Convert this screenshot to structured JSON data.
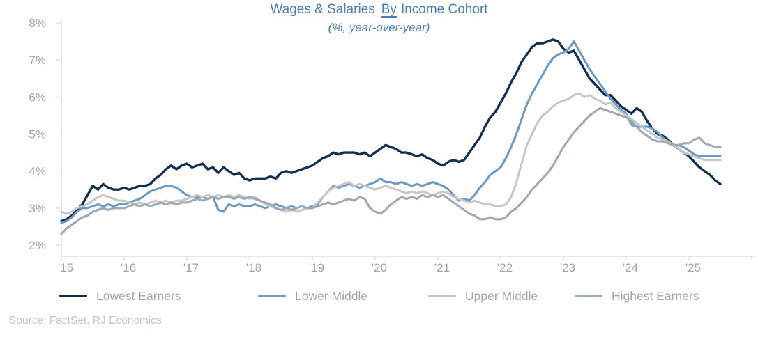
{
  "title": {
    "part1": "Wages & Salaries",
    "underlined_word": "By",
    "part2": "Income Cohort",
    "full": "Wages & Salaries By Income Cohort"
  },
  "subtitle": "(%, year-over-year)",
  "source": "Source: FactSet, RJ Economics",
  "colors": {
    "title_text": "#4a7db9",
    "axis_label": "#a3a3a3",
    "axis_line": "#d9d9d9",
    "legend_label": "#a6a6a6",
    "source_text": "#c6c6c6"
  },
  "chart_data": {
    "type": "line",
    "title": "Wages & Salaries By Income Cohort",
    "subtitle": "(%, year-over-year)",
    "unit": "%, year-over-year",
    "grid": false,
    "legend_position": "bottom",
    "x_axis": {
      "start_year": 2015,
      "months_per_point": 1,
      "end_label_year": 2025,
      "ticks": [
        {
          "t": 2015,
          "label": "'15"
        },
        {
          "t": 2016,
          "label": "'16"
        },
        {
          "t": 2017,
          "label": "'17"
        },
        {
          "t": 2018,
          "label": "'18"
        },
        {
          "t": 2019,
          "label": "'19"
        },
        {
          "t": 2020,
          "label": "'20"
        },
        {
          "t": 2021,
          "label": "'21"
        },
        {
          "t": 2022,
          "label": "'22"
        },
        {
          "t": 2023,
          "label": "'23"
        },
        {
          "t": 2024,
          "label": "'24"
        },
        {
          "t": 2025,
          "label": "'25"
        },
        {
          "t": 2026,
          "label": ""
        }
      ]
    },
    "y_axis": {
      "range": [
        2,
        8
      ],
      "ticks": [
        {
          "v": 2,
          "label": "2%"
        },
        {
          "v": 3,
          "label": "3%"
        },
        {
          "v": 4,
          "label": "4%"
        },
        {
          "v": 5,
          "label": "5%"
        },
        {
          "v": 6,
          "label": "6%"
        },
        {
          "v": 7,
          "label": "7%"
        },
        {
          "v": 8,
          "label": "8%"
        }
      ]
    },
    "series": [
      {
        "name": "Lowest Earners",
        "color": "#12304f",
        "line_width": 3.4,
        "values": [
          2.65,
          2.7,
          2.8,
          2.95,
          3.1,
          3.35,
          3.6,
          3.5,
          3.65,
          3.55,
          3.5,
          3.5,
          3.55,
          3.5,
          3.55,
          3.6,
          3.6,
          3.65,
          3.8,
          3.9,
          4.05,
          4.15,
          4.05,
          4.15,
          4.2,
          4.1,
          4.15,
          4.2,
          4.05,
          4.1,
          3.95,
          4.1,
          4.0,
          3.9,
          3.95,
          3.8,
          3.75,
          3.8,
          3.8,
          3.8,
          3.85,
          3.8,
          3.95,
          4.0,
          3.95,
          4.0,
          4.05,
          4.1,
          4.15,
          4.25,
          4.35,
          4.4,
          4.5,
          4.45,
          4.5,
          4.5,
          4.5,
          4.45,
          4.5,
          4.4,
          4.5,
          4.6,
          4.7,
          4.65,
          4.6,
          4.5,
          4.5,
          4.45,
          4.4,
          4.45,
          4.35,
          4.3,
          4.2,
          4.15,
          4.25,
          4.3,
          4.25,
          4.3,
          4.5,
          4.7,
          4.9,
          5.2,
          5.45,
          5.6,
          5.85,
          6.1,
          6.4,
          6.65,
          6.95,
          7.15,
          7.35,
          7.45,
          7.45,
          7.5,
          7.55,
          7.5,
          7.3,
          7.2,
          7.25,
          7.0,
          6.75,
          6.5,
          6.35,
          6.2,
          6.05,
          6.05,
          5.9,
          5.75,
          5.65,
          5.55,
          5.7,
          5.6,
          5.35,
          5.15,
          5.0,
          4.95,
          4.85,
          4.7,
          4.6,
          4.5,
          4.4,
          4.25,
          4.1,
          4.0,
          3.9,
          3.75,
          3.65
        ]
      },
      {
        "name": "Lower Middle",
        "color": "#6b9ac6",
        "line_width": 3.1,
        "values": [
          2.6,
          2.65,
          2.75,
          2.9,
          3.0,
          3.0,
          3.05,
          3.1,
          3.05,
          3.1,
          3.05,
          3.1,
          3.1,
          3.15,
          3.2,
          3.25,
          3.35,
          3.45,
          3.5,
          3.55,
          3.6,
          3.6,
          3.55,
          3.45,
          3.35,
          3.3,
          3.3,
          3.3,
          3.25,
          3.3,
          2.95,
          2.9,
          3.1,
          3.05,
          3.1,
          3.05,
          3.05,
          3.1,
          3.05,
          3.0,
          3.05,
          3.1,
          3.05,
          3.0,
          3.05,
          3.0,
          3.05,
          3.0,
          3.05,
          3.1,
          3.3,
          3.45,
          3.6,
          3.55,
          3.6,
          3.65,
          3.6,
          3.55,
          3.6,
          3.65,
          3.7,
          3.8,
          3.7,
          3.7,
          3.65,
          3.7,
          3.65,
          3.6,
          3.65,
          3.6,
          3.65,
          3.7,
          3.65,
          3.6,
          3.5,
          3.35,
          3.2,
          3.25,
          3.2,
          3.35,
          3.55,
          3.7,
          3.9,
          4.0,
          4.1,
          4.35,
          4.65,
          5.0,
          5.4,
          5.8,
          6.1,
          6.35,
          6.6,
          6.85,
          7.05,
          7.15,
          7.2,
          7.3,
          7.5,
          7.25,
          7.0,
          6.75,
          6.55,
          6.35,
          6.15,
          5.95,
          5.8,
          5.65,
          5.55,
          5.25,
          5.2,
          5.2,
          5.2,
          5.15,
          5.05,
          4.9,
          4.8,
          4.7,
          4.7,
          4.65,
          4.55,
          4.45,
          4.4,
          4.4,
          4.4,
          4.4,
          4.4
        ]
      },
      {
        "name": "Upper Middle",
        "color": "#c7c7c7",
        "line_width": 3.1,
        "values": [
          2.9,
          2.85,
          2.9,
          3.0,
          3.05,
          3.1,
          3.2,
          3.3,
          3.35,
          3.3,
          3.25,
          3.2,
          3.2,
          3.15,
          3.1,
          3.15,
          3.1,
          3.15,
          3.2,
          3.15,
          3.2,
          3.15,
          3.2,
          3.2,
          3.25,
          3.3,
          3.35,
          3.3,
          3.35,
          3.3,
          3.35,
          3.3,
          3.35,
          3.3,
          3.35,
          3.3,
          3.25,
          3.3,
          3.2,
          3.1,
          3.05,
          3.0,
          2.95,
          2.9,
          2.95,
          2.9,
          2.95,
          3.0,
          3.0,
          3.15,
          3.3,
          3.45,
          3.55,
          3.6,
          3.65,
          3.7,
          3.6,
          3.65,
          3.6,
          3.55,
          3.5,
          3.55,
          3.6,
          3.55,
          3.5,
          3.45,
          3.4,
          3.45,
          3.4,
          3.45,
          3.4,
          3.35,
          3.4,
          3.45,
          3.4,
          3.3,
          3.25,
          3.2,
          3.15,
          3.2,
          3.15,
          3.1,
          3.1,
          3.05,
          3.05,
          3.1,
          3.3,
          3.7,
          4.2,
          4.7,
          5.0,
          5.3,
          5.5,
          5.6,
          5.75,
          5.85,
          5.9,
          5.95,
          6.05,
          6.1,
          6.0,
          6.05,
          5.95,
          5.9,
          5.8,
          5.85,
          5.7,
          5.6,
          5.5,
          5.4,
          5.3,
          5.2,
          5.1,
          5.0,
          4.9,
          4.85,
          4.8,
          4.7,
          4.6,
          4.5,
          4.45,
          4.4,
          4.35,
          4.3,
          4.3,
          4.3,
          4.3
        ]
      },
      {
        "name": "Highest Earners",
        "color": "#9fa9b4",
        "line_width": 3.1,
        "values": [
          2.3,
          2.45,
          2.55,
          2.65,
          2.75,
          2.8,
          2.9,
          2.95,
          3.0,
          2.95,
          3.0,
          3.0,
          3.0,
          3.05,
          3.1,
          3.05,
          3.1,
          3.05,
          3.1,
          3.15,
          3.1,
          3.15,
          3.1,
          3.15,
          3.15,
          3.2,
          3.25,
          3.2,
          3.25,
          3.3,
          3.25,
          3.3,
          3.3,
          3.25,
          3.3,
          3.25,
          3.3,
          3.25,
          3.2,
          3.15,
          3.1,
          3.0,
          2.95,
          3.0,
          2.95,
          3.0,
          3.05,
          3.0,
          3.0,
          3.05,
          3.1,
          3.15,
          3.1,
          3.15,
          3.2,
          3.25,
          3.2,
          3.3,
          3.25,
          3.0,
          2.9,
          2.85,
          2.95,
          3.1,
          3.2,
          3.3,
          3.25,
          3.3,
          3.25,
          3.35,
          3.3,
          3.35,
          3.3,
          3.35,
          3.25,
          3.15,
          3.05,
          2.95,
          2.85,
          2.8,
          2.7,
          2.7,
          2.75,
          2.7,
          2.7,
          2.75,
          2.9,
          3.0,
          3.15,
          3.3,
          3.5,
          3.65,
          3.8,
          3.95,
          4.15,
          4.4,
          4.65,
          4.85,
          5.05,
          5.2,
          5.35,
          5.5,
          5.6,
          5.7,
          5.65,
          5.6,
          5.55,
          5.5,
          5.45,
          5.35,
          5.2,
          5.05,
          4.95,
          4.85,
          4.8,
          4.8,
          4.75,
          4.7,
          4.7,
          4.75,
          4.75,
          4.85,
          4.9,
          4.75,
          4.7,
          4.65,
          4.65
        ]
      }
    ]
  }
}
